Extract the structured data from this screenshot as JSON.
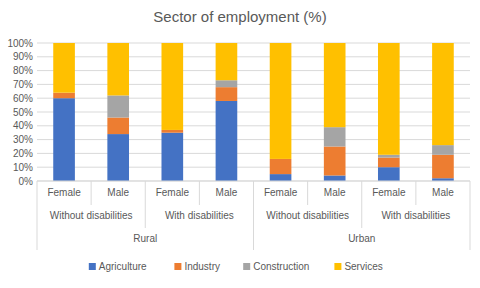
{
  "chart_data": {
    "type": "bar",
    "title": "Sector of employment (%)",
    "stacked": true,
    "grid": true,
    "legend": "bottom",
    "categories": [
      "Female",
      "Male",
      "Female",
      "Male",
      "Female",
      "Male",
      "Female",
      "Male"
    ],
    "category_groups": [
      [
        "Without disabilities",
        "With disabilities",
        "Without disabilities",
        "With disabilities"
      ],
      [
        "Rural",
        "Urban"
      ]
    ],
    "ylim": [
      0,
      100
    ],
    "yticks": [
      {
        "value": 0,
        "label": "0%"
      },
      {
        "value": 10,
        "label": "10%"
      },
      {
        "value": 20,
        "label": "20%"
      },
      {
        "value": 30,
        "label": "30%"
      },
      {
        "value": 40,
        "label": "40%"
      },
      {
        "value": 50,
        "label": "50%"
      },
      {
        "value": 60,
        "label": "60%"
      },
      {
        "value": 70,
        "label": "70%"
      },
      {
        "value": 80,
        "label": "80%"
      },
      {
        "value": 90,
        "label": "90%"
      },
      {
        "value": 100,
        "label": "100%"
      }
    ],
    "series": [
      {
        "name": "Agriculture",
        "color": "#4472c4",
        "values": [
          60,
          34,
          35,
          58,
          5,
          4,
          10,
          2
        ]
      },
      {
        "name": "Industry",
        "color": "#ed7d31",
        "values": [
          4,
          12,
          2,
          10,
          11,
          21,
          7,
          17
        ]
      },
      {
        "name": "Construction",
        "color": "#a5a5a5",
        "values": [
          0,
          16,
          0,
          5,
          0,
          14,
          2,
          7
        ]
      },
      {
        "name": "Services",
        "color": "#ffc000",
        "values": [
          36,
          38,
          63,
          27,
          84,
          61,
          81,
          74
        ]
      }
    ]
  }
}
